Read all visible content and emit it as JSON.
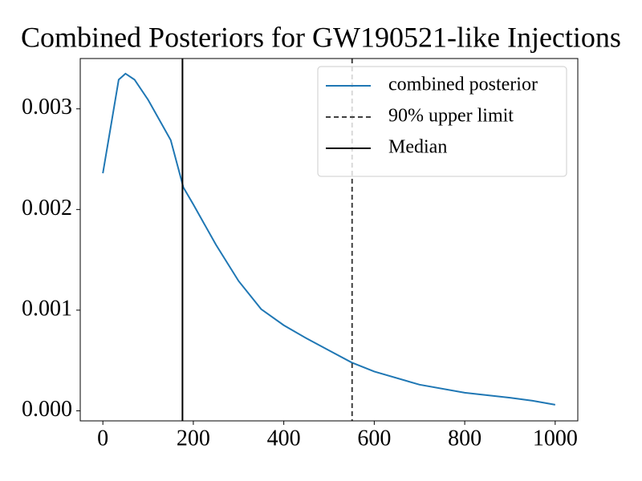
{
  "chart_data": {
    "type": "line",
    "title": "Combined Posteriors for GW190521-like Injections",
    "x": [
      0,
      20,
      35,
      50,
      70,
      100,
      150,
      178,
      200,
      250,
      300,
      350,
      400,
      450,
      500,
      550,
      600,
      700,
      800,
      900,
      950,
      1000
    ],
    "series": [
      {
        "name": "combined posterior",
        "color": "#1f77b4",
        "values": [
          0.00236,
          0.00289,
          0.00329,
          0.00335,
          0.00329,
          0.00309,
          0.00269,
          0.00222,
          0.00205,
          0.00165,
          0.00129,
          0.00101,
          0.00085,
          0.00072,
          0.0006,
          0.00048,
          0.00039,
          0.00026,
          0.00018,
          0.00013,
          0.0001,
          6e-05
        ]
      }
    ],
    "vlines": [
      {
        "name": "90% upper limit",
        "x": 551,
        "color": "#404040",
        "style": "dashed"
      },
      {
        "name": "Median",
        "x": 176,
        "color": "#000000",
        "style": "solid"
      }
    ],
    "xlim": [
      -50,
      1050
    ],
    "xticks": [
      0,
      200,
      400,
      600,
      800,
      1000
    ],
    "ylim": [
      -0.0001,
      0.0035
    ],
    "yticks": [
      {
        "value": 0,
        "label": "0.000"
      },
      {
        "value": 0.001,
        "label": "0.001"
      },
      {
        "value": 0.002,
        "label": "0.002"
      },
      {
        "value": 0.003,
        "label": "0.003"
      }
    ],
    "legend": "upper right",
    "grid": false
  }
}
